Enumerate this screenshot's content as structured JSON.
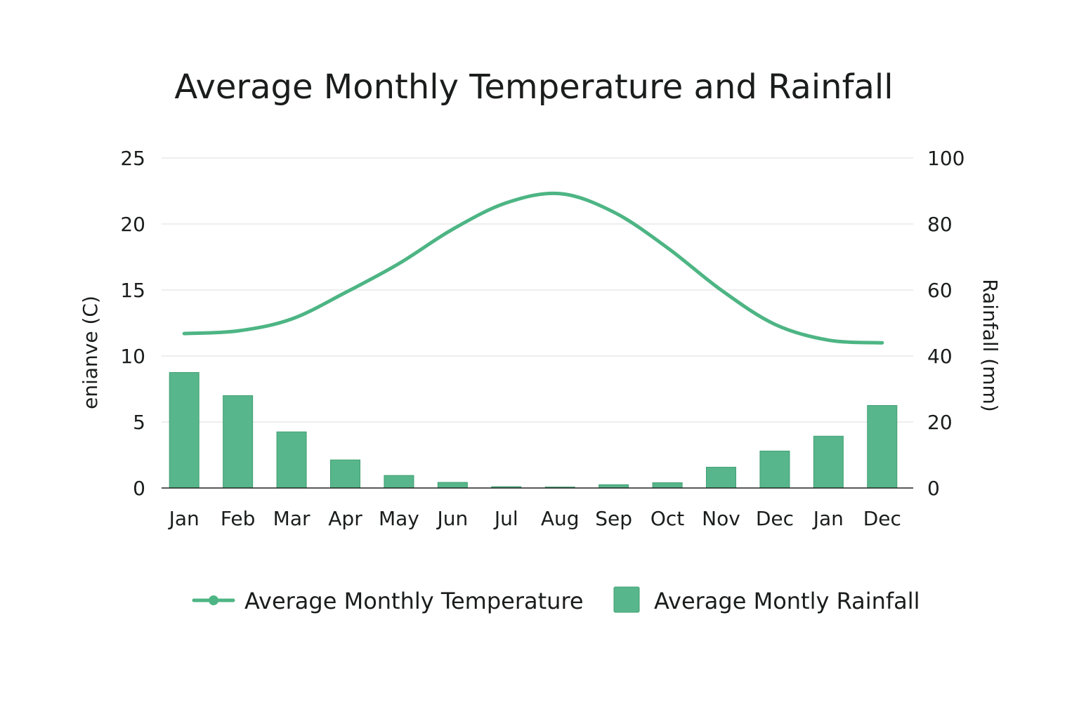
{
  "chart_data": {
    "type": "bar+line",
    "title": "Average Monthly Temperature and Rainfall",
    "categories": [
      "Jan",
      "Feb",
      "Mar",
      "Apr",
      "May",
      "Jun",
      "Jul",
      "Aug",
      "Sep",
      "Oct",
      "Nov",
      "Dec",
      "Jan",
      "Dec"
    ],
    "series": [
      {
        "name": "Average Monthly Temperature",
        "kind": "line",
        "axis": "left",
        "values": [
          11.7,
          11.9,
          12.8,
          14.8,
          17.0,
          19.6,
          21.6,
          22.3,
          20.9,
          18.2,
          15.0,
          12.4,
          11.2,
          11.0
        ]
      },
      {
        "name": "Average Montly Rainfall",
        "kind": "bar",
        "axis": "right",
        "values": [
          35,
          28,
          17,
          8.5,
          3.8,
          1.7,
          0.4,
          0.3,
          1.0,
          1.6,
          6.3,
          11.2,
          15.7,
          25
        ]
      }
    ],
    "ylabel": "enianve (C)",
    "ylabel_right": "Rainfall (mm)",
    "ylim": [
      0,
      25
    ],
    "ylim_right": [
      0,
      100
    ],
    "yticks": [
      "0",
      "5",
      "10",
      "15",
      "20",
      "25"
    ],
    "yticks_right": [
      "0",
      "20",
      "40",
      "60",
      "80",
      "100"
    ],
    "grid": true,
    "legend_position": "bottom"
  },
  "colors": {
    "line": "#4db584",
    "bar": "#57b68b",
    "bar_edge": "#3f9f72"
  }
}
